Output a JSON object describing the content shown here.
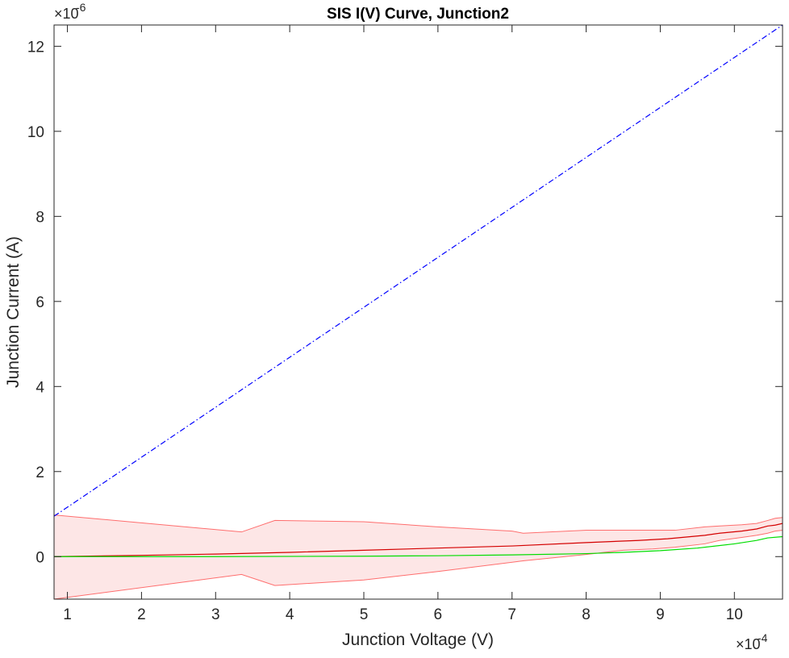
{
  "chart_data": {
    "type": "line",
    "title": "SIS I(V) Curve, Junction2",
    "xlabel": "Junction Voltage (V)",
    "ylabel": "Junction Current (A)",
    "x_exponent": "×10",
    "x_exponent_power": "-4",
    "y_exponent": "×10",
    "y_exponent_power": "-6",
    "xlim": [
      0.82,
      10.65
    ],
    "ylim": [
      -1.0,
      12.5
    ],
    "x_ticks": [
      1,
      2,
      3,
      4,
      5,
      6,
      7,
      8,
      9,
      10
    ],
    "x_tick_labels": [
      "1",
      "2",
      "3",
      "4",
      "5",
      "6",
      "7",
      "8",
      "9",
      "10"
    ],
    "y_ticks": [
      0,
      2,
      4,
      6,
      8,
      10,
      12
    ],
    "y_tick_labels": [
      "0",
      "2",
      "4",
      "6",
      "8",
      "10",
      "12"
    ],
    "grid": false,
    "legend": "none",
    "series": [
      {
        "style": "dash-dot",
        "color": "#0000ff",
        "x": [
          0.82,
          10.65
        ],
        "y": [
          0.95,
          12.5
        ]
      },
      {
        "style": "solid",
        "color": "#d40000",
        "x": [
          0.82,
          2,
          3,
          4,
          5,
          6,
          7,
          8,
          8.7,
          9.1,
          9.6,
          9.8,
          10.1,
          10.3,
          10.45,
          10.55,
          10.65
        ],
        "y": [
          0.0,
          0.03,
          0.06,
          0.1,
          0.15,
          0.2,
          0.25,
          0.33,
          0.38,
          0.42,
          0.5,
          0.55,
          0.6,
          0.65,
          0.72,
          0.74,
          0.78
        ]
      },
      {
        "style": "solid",
        "color": "#00dd00",
        "x": [
          0.82,
          3,
          5,
          6,
          7,
          8,
          8.5,
          9,
          9.5,
          10,
          10.3,
          10.45,
          10.65
        ],
        "y": [
          0.0,
          0.0,
          0.01,
          0.02,
          0.04,
          0.07,
          0.1,
          0.14,
          0.2,
          0.3,
          0.38,
          0.44,
          0.47
        ]
      },
      {
        "style": "band",
        "color": "#ff0000",
        "fill": "#fde6e6",
        "x_upper": [
          0.82,
          3.35,
          3.8,
          5,
          6,
          7,
          7.15,
          8,
          8.5,
          8.9,
          9.2,
          9.6,
          9.8,
          10.1,
          10.3,
          10.45,
          10.55,
          10.65
        ],
        "y_upper": [
          0.98,
          0.58,
          0.85,
          0.82,
          0.7,
          0.6,
          0.55,
          0.62,
          0.62,
          0.62,
          0.62,
          0.7,
          0.72,
          0.75,
          0.78,
          0.85,
          0.9,
          0.92
        ],
        "x_lower": [
          0.82,
          3.35,
          3.8,
          5,
          6,
          7.15,
          8,
          8.5,
          8.9,
          9.2,
          9.6,
          9.8,
          10.1,
          10.3,
          10.45,
          10.55,
          10.65
        ],
        "y_lower": [
          -1.0,
          -0.42,
          -0.68,
          -0.55,
          -0.35,
          -0.1,
          0.05,
          0.15,
          0.18,
          0.22,
          0.3,
          0.38,
          0.45,
          0.5,
          0.55,
          0.6,
          0.62
        ]
      }
    ]
  }
}
